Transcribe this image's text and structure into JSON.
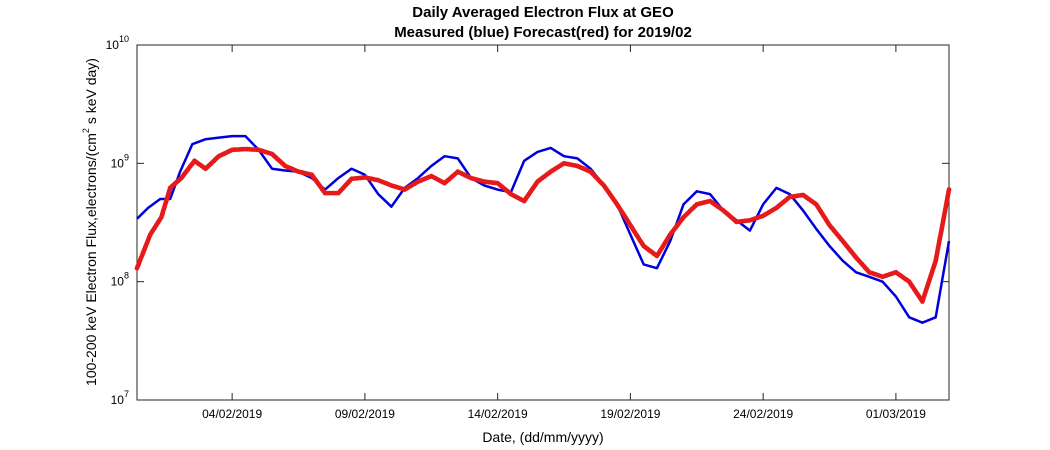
{
  "chart_data": {
    "type": "line",
    "title": "Daily Averaged Electron Flux at GEO",
    "subtitle": "Measured (blue) Forecast(red) for 2019/02",
    "xlabel": "Date, (dd/mm/yyyy)",
    "ylabel_parts": {
      "pre": "100-200 keV Electron Flux,electrons/(cm",
      "sup": "2",
      "post": " s keV day)"
    },
    "xlim": [
      "2019-01-31T10:00",
      "2019-03-03T00:00"
    ],
    "ylim": [
      10000000,
      10000000000
    ],
    "yscale": "log",
    "grid": false,
    "x_ticks": [
      {
        "date": "2019-02-04",
        "label": "04/02/2019"
      },
      {
        "date": "2019-02-09",
        "label": "09/02/2019"
      },
      {
        "date": "2019-02-14",
        "label": "14/02/2019"
      },
      {
        "date": "2019-02-19",
        "label": "19/02/2019"
      },
      {
        "date": "2019-02-24",
        "label": "24/02/2019"
      },
      {
        "date": "2019-03-01",
        "label": "01/03/2019"
      }
    ],
    "y_ticks": [
      {
        "value": 10000000,
        "base": "10",
        "exp": "7"
      },
      {
        "value": 100000000,
        "base": "10",
        "exp": "8"
      },
      {
        "value": 1000000000,
        "base": "10",
        "exp": "9"
      },
      {
        "value": 10000000000,
        "base": "10",
        "exp": "10"
      }
    ],
    "series": [
      {
        "name": "Measured",
        "color": "#0000dd",
        "style": "line",
        "points": [
          [
            "2019-01-31T10:00",
            340000000
          ],
          [
            "2019-01-31T20:00",
            420000000
          ],
          [
            "2019-02-01T07:00",
            500000000
          ],
          [
            "2019-02-01T16:00",
            500000000
          ],
          [
            "2019-02-02T01:00",
            850000000
          ],
          [
            "2019-02-02T12:00",
            1450000000
          ],
          [
            "2019-02-03T00:00",
            1600000000
          ],
          [
            "2019-02-03T12:00",
            1650000000
          ],
          [
            "2019-02-04T00:00",
            1700000000
          ],
          [
            "2019-02-04T12:00",
            1700000000
          ],
          [
            "2019-02-05T00:00",
            1300000000
          ],
          [
            "2019-02-05T12:00",
            900000000
          ],
          [
            "2019-02-06T00:00",
            870000000
          ],
          [
            "2019-02-06T12:00",
            850000000
          ],
          [
            "2019-02-07T00:00",
            750000000
          ],
          [
            "2019-02-07T12:00",
            600000000
          ],
          [
            "2019-02-08T00:00",
            750000000
          ],
          [
            "2019-02-08T12:00",
            900000000
          ],
          [
            "2019-02-09T00:00",
            800000000
          ],
          [
            "2019-02-09T12:00",
            550000000
          ],
          [
            "2019-02-10T00:00",
            430000000
          ],
          [
            "2019-02-10T12:00",
            620000000
          ],
          [
            "2019-02-11T00:00",
            750000000
          ],
          [
            "2019-02-11T12:00",
            950000000
          ],
          [
            "2019-02-12T00:00",
            1150000000
          ],
          [
            "2019-02-12T12:00",
            1100000000
          ],
          [
            "2019-02-13T00:00",
            750000000
          ],
          [
            "2019-02-13T12:00",
            650000000
          ],
          [
            "2019-02-14T00:00",
            600000000
          ],
          [
            "2019-02-14T12:00",
            570000000
          ],
          [
            "2019-02-15T00:00",
            1050000000
          ],
          [
            "2019-02-15T12:00",
            1250000000
          ],
          [
            "2019-02-16T00:00",
            1350000000
          ],
          [
            "2019-02-16T12:00",
            1150000000
          ],
          [
            "2019-02-17T00:00",
            1100000000
          ],
          [
            "2019-02-17T12:00",
            900000000
          ],
          [
            "2019-02-18T00:00",
            650000000
          ],
          [
            "2019-02-18T12:00",
            450000000
          ],
          [
            "2019-02-19T00:00",
            250000000
          ],
          [
            "2019-02-19T12:00",
            140000000
          ],
          [
            "2019-02-20T00:00",
            130000000
          ],
          [
            "2019-02-20T12:00",
            220000000
          ],
          [
            "2019-02-21T00:00",
            450000000
          ],
          [
            "2019-02-21T12:00",
            580000000
          ],
          [
            "2019-02-22T00:00",
            550000000
          ],
          [
            "2019-02-22T12:00",
            400000000
          ],
          [
            "2019-02-23T00:00",
            330000000
          ],
          [
            "2019-02-23T12:00",
            270000000
          ],
          [
            "2019-02-24T00:00",
            450000000
          ],
          [
            "2019-02-24T12:00",
            620000000
          ],
          [
            "2019-02-25T00:00",
            550000000
          ],
          [
            "2019-02-25T12:00",
            400000000
          ],
          [
            "2019-02-26T00:00",
            280000000
          ],
          [
            "2019-02-26T12:00",
            200000000
          ],
          [
            "2019-02-27T00:00",
            150000000
          ],
          [
            "2019-02-27T12:00",
            120000000
          ],
          [
            "2019-02-28T00:00",
            110000000
          ],
          [
            "2019-02-28T12:00",
            100000000
          ],
          [
            "2019-03-01T00:00",
            75000000
          ],
          [
            "2019-03-01T12:00",
            50000000
          ],
          [
            "2019-03-02T00:00",
            45000000
          ],
          [
            "2019-03-02T12:00",
            50000000
          ],
          [
            "2019-03-03T00:00",
            220000000
          ]
        ]
      },
      {
        "name": "Forecast",
        "color": "#e61a1a",
        "style": "markers",
        "points": [
          [
            "2019-01-31T10:00",
            130000000
          ],
          [
            "2019-01-31T22:00",
            250000000
          ],
          [
            "2019-02-01T08:00",
            350000000
          ],
          [
            "2019-02-01T16:00",
            620000000
          ],
          [
            "2019-02-02T02:00",
            750000000
          ],
          [
            "2019-02-02T14:00",
            1050000000
          ],
          [
            "2019-02-03T00:00",
            900000000
          ],
          [
            "2019-02-03T12:00",
            1150000000
          ],
          [
            "2019-02-04T00:00",
            1300000000
          ],
          [
            "2019-02-04T12:00",
            1320000000
          ],
          [
            "2019-02-05T00:00",
            1300000000
          ],
          [
            "2019-02-05T12:00",
            1200000000
          ],
          [
            "2019-02-06T00:00",
            950000000
          ],
          [
            "2019-02-06T12:00",
            850000000
          ],
          [
            "2019-02-07T00:00",
            800000000
          ],
          [
            "2019-02-07T12:00",
            560000000
          ],
          [
            "2019-02-08T00:00",
            560000000
          ],
          [
            "2019-02-08T12:00",
            740000000
          ],
          [
            "2019-02-09T00:00",
            760000000
          ],
          [
            "2019-02-09T12:00",
            720000000
          ],
          [
            "2019-02-10T00:00",
            650000000
          ],
          [
            "2019-02-10T12:00",
            600000000
          ],
          [
            "2019-02-11T00:00",
            700000000
          ],
          [
            "2019-02-11T12:00",
            780000000
          ],
          [
            "2019-02-12T00:00",
            680000000
          ],
          [
            "2019-02-12T12:00",
            850000000
          ],
          [
            "2019-02-13T00:00",
            750000000
          ],
          [
            "2019-02-13T12:00",
            700000000
          ],
          [
            "2019-02-14T00:00",
            680000000
          ],
          [
            "2019-02-14T12:00",
            550000000
          ],
          [
            "2019-02-15T00:00",
            480000000
          ],
          [
            "2019-02-15T12:00",
            700000000
          ],
          [
            "2019-02-16T00:00",
            850000000
          ],
          [
            "2019-02-16T12:00",
            1000000000
          ],
          [
            "2019-02-17T00:00",
            950000000
          ],
          [
            "2019-02-17T12:00",
            850000000
          ],
          [
            "2019-02-18T00:00",
            650000000
          ],
          [
            "2019-02-18T12:00",
            450000000
          ],
          [
            "2019-02-19T00:00",
            300000000
          ],
          [
            "2019-02-19T12:00",
            200000000
          ],
          [
            "2019-02-20T00:00",
            165000000
          ],
          [
            "2019-02-20T12:00",
            250000000
          ],
          [
            "2019-02-21T00:00",
            350000000
          ],
          [
            "2019-02-21T12:00",
            450000000
          ],
          [
            "2019-02-22T00:00",
            480000000
          ],
          [
            "2019-02-22T12:00",
            400000000
          ],
          [
            "2019-02-23T00:00",
            320000000
          ],
          [
            "2019-02-23T12:00",
            330000000
          ],
          [
            "2019-02-24T00:00",
            360000000
          ],
          [
            "2019-02-24T12:00",
            420000000
          ],
          [
            "2019-02-25T00:00",
            520000000
          ],
          [
            "2019-02-25T12:00",
            540000000
          ],
          [
            "2019-02-26T00:00",
            450000000
          ],
          [
            "2019-02-26T12:00",
            300000000
          ],
          [
            "2019-02-27T00:00",
            220000000
          ],
          [
            "2019-02-27T12:00",
            160000000
          ],
          [
            "2019-02-28T00:00",
            120000000
          ],
          [
            "2019-02-28T12:00",
            110000000
          ],
          [
            "2019-03-01T00:00",
            120000000
          ],
          [
            "2019-03-01T12:00",
            100000000
          ],
          [
            "2019-03-02T00:00",
            68000000
          ],
          [
            "2019-03-02T12:00",
            150000000
          ],
          [
            "2019-03-03T00:00",
            600000000
          ]
        ]
      }
    ]
  }
}
